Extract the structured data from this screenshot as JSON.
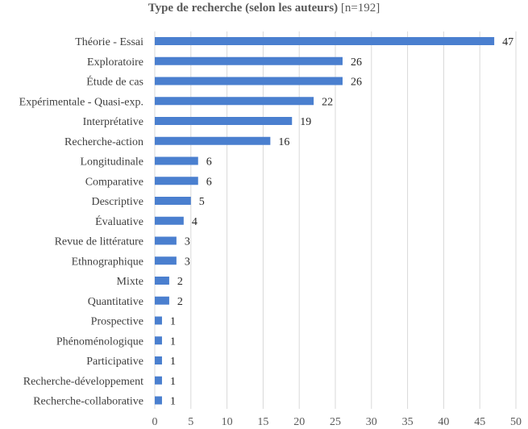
{
  "chart_data": {
    "type": "bar",
    "orientation": "horizontal",
    "title": "Type de recherche (selon les auteurs)",
    "subtitle": "[n=192]",
    "categories": [
      "Théorie - Essai",
      "Exploratoire",
      "Étude de cas",
      "Expérimentale - Quasi-exp.",
      "Interprétative",
      "Recherche-action",
      "Longitudinale",
      "Comparative",
      "Descriptive",
      "Évaluative",
      "Revue de littérature",
      "Ethnographique",
      "Mixte",
      "Quantitative",
      "Prospective",
      "Phénoménologique",
      "Participative",
      "Recherche-développement",
      "Recherche-collaborative"
    ],
    "values": [
      47,
      26,
      26,
      22,
      19,
      16,
      6,
      6,
      5,
      4,
      3,
      3,
      2,
      2,
      1,
      1,
      1,
      1,
      1
    ],
    "xlim": [
      0,
      50
    ],
    "xticks": [
      0,
      5,
      10,
      15,
      20,
      25,
      30,
      35,
      40,
      45,
      50
    ],
    "grid": true,
    "legend": "none",
    "bar_color": "#4a7fcf",
    "grid_color": "#d9d9d9"
  }
}
